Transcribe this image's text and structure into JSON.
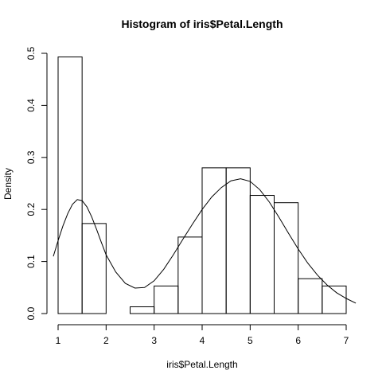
{
  "chart_data": {
    "type": "bar",
    "title": "Histogram of iris$Petal.Length",
    "xlabel": "iris$Petal.Length",
    "ylabel": "Density",
    "xlim": [
      1,
      7
    ],
    "ylim": [
      0,
      0.5
    ],
    "x_ticks": [
      "1",
      "2",
      "3",
      "4",
      "5",
      "6",
      "7"
    ],
    "y_ticks": [
      "0.0",
      "0.1",
      "0.2",
      "0.3",
      "0.4",
      "0.5"
    ],
    "bins": [
      {
        "from": 1.0,
        "to": 1.5,
        "density": 0.493
      },
      {
        "from": 1.5,
        "to": 2.0,
        "density": 0.173
      },
      {
        "from": 2.0,
        "to": 2.5,
        "density": 0.0
      },
      {
        "from": 2.5,
        "to": 3.0,
        "density": 0.013
      },
      {
        "from": 3.0,
        "to": 3.5,
        "density": 0.053
      },
      {
        "from": 3.5,
        "to": 4.0,
        "density": 0.147
      },
      {
        "from": 4.0,
        "to": 4.5,
        "density": 0.28
      },
      {
        "from": 4.5,
        "to": 5.0,
        "density": 0.28
      },
      {
        "from": 5.0,
        "to": 5.5,
        "density": 0.227
      },
      {
        "from": 5.5,
        "to": 6.0,
        "density": 0.213
      },
      {
        "from": 6.0,
        "to": 6.5,
        "density": 0.067
      },
      {
        "from": 6.5,
        "to": 7.0,
        "density": 0.053
      }
    ],
    "density_curve": {
      "x": [
        0.9,
        1.0,
        1.1,
        1.2,
        1.3,
        1.4,
        1.5,
        1.6,
        1.7,
        1.8,
        1.9,
        2.0,
        2.2,
        2.4,
        2.6,
        2.8,
        3.0,
        3.2,
        3.4,
        3.6,
        3.8,
        4.0,
        4.2,
        4.4,
        4.6,
        4.8,
        5.0,
        5.2,
        5.4,
        5.6,
        5.8,
        6.0,
        6.2,
        6.4,
        6.6,
        6.8,
        7.0,
        7.2
      ],
      "y": [
        0.11,
        0.14,
        0.168,
        0.192,
        0.21,
        0.219,
        0.217,
        0.205,
        0.186,
        0.162,
        0.137,
        0.113,
        0.08,
        0.058,
        0.049,
        0.05,
        0.063,
        0.085,
        0.113,
        0.143,
        0.172,
        0.2,
        0.224,
        0.242,
        0.255,
        0.259,
        0.254,
        0.238,
        0.214,
        0.185,
        0.154,
        0.124,
        0.097,
        0.074,
        0.055,
        0.04,
        0.029,
        0.02
      ]
    },
    "grid": false,
    "legend": "none"
  }
}
